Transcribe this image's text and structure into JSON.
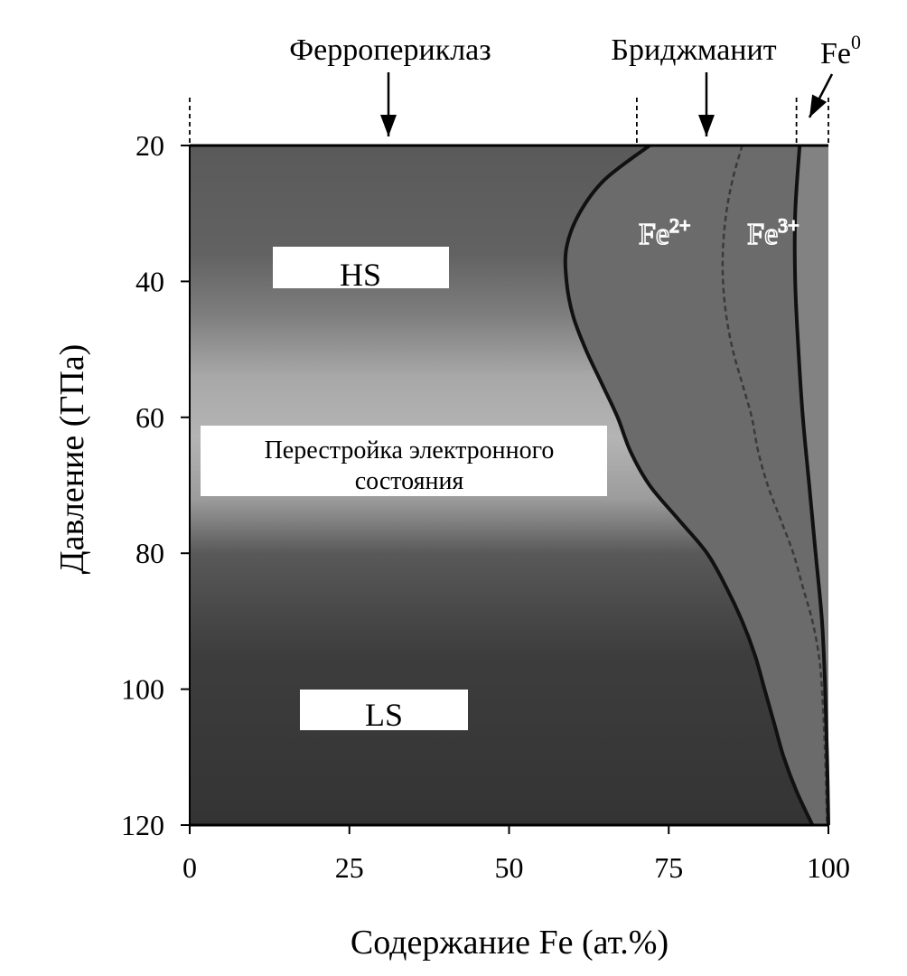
{
  "chart_data": {
    "type": "area",
    "xlabel": "Содержание Fe (ат.%)",
    "ylabel": "Давление (ГПа)",
    "xlim": [
      0,
      100
    ],
    "ylim": [
      20,
      120
    ],
    "y_inverted": true,
    "x_ticks": [
      0,
      25,
      50,
      75,
      100
    ],
    "y_ticks": [
      20,
      40,
      60,
      80,
      100,
      120
    ],
    "phase_labels": [
      {
        "text": "Ферропериклаз",
        "x_range": [
          0,
          70
        ]
      },
      {
        "text": "Бриджманит",
        "x_range": [
          70,
          95
        ]
      },
      {
        "text": "Fe",
        "superscript": "0",
        "x_range": [
          95,
          100
        ]
      }
    ],
    "boundaries": [
      {
        "name": "ferropericlase-bridgmanite",
        "style": "solid",
        "points": [
          [
            20,
            72
          ],
          [
            25,
            65
          ],
          [
            30,
            61
          ],
          [
            35,
            59
          ],
          [
            40,
            59
          ],
          [
            45,
            60
          ],
          [
            50,
            62
          ],
          [
            55,
            64.5
          ],
          [
            60,
            67
          ],
          [
            65,
            69
          ],
          [
            70,
            72
          ],
          [
            75,
            76.5
          ],
          [
            80,
            81
          ],
          [
            85,
            84
          ],
          [
            90,
            86.5
          ],
          [
            95,
            88.5
          ],
          [
            100,
            90
          ],
          [
            105,
            91.5
          ],
          [
            110,
            93
          ],
          [
            115,
            95
          ],
          [
            120,
            97.5
          ]
        ]
      },
      {
        "name": "Fe2+-Fe3+",
        "style": "dashed",
        "points": [
          [
            20,
            86.5
          ],
          [
            25,
            85
          ],
          [
            30,
            84
          ],
          [
            35,
            83.5
          ],
          [
            40,
            83.5
          ],
          [
            45,
            84
          ],
          [
            50,
            85
          ],
          [
            55,
            86.5
          ],
          [
            60,
            88
          ],
          [
            65,
            89
          ],
          [
            70,
            90.5
          ],
          [
            75,
            92.5
          ],
          [
            80,
            94.5
          ],
          [
            85,
            96
          ],
          [
            90,
            97.5
          ],
          [
            95,
            98.5
          ],
          [
            100,
            99
          ],
          [
            110,
            99.5
          ],
          [
            120,
            99.8
          ]
        ]
      },
      {
        "name": "bridgmanite-Fe0",
        "style": "solid",
        "points": [
          [
            20,
            95.5
          ],
          [
            30,
            94.8
          ],
          [
            40,
            94.8
          ],
          [
            50,
            95.3
          ],
          [
            60,
            96
          ],
          [
            70,
            97
          ],
          [
            80,
            98
          ],
          [
            90,
            99
          ],
          [
            100,
            99.5
          ],
          [
            110,
            99.8
          ],
          [
            120,
            100
          ]
        ]
      }
    ],
    "dashed_phase_dividers_x": [
      0,
      70,
      95,
      100
    ],
    "region_labels": [
      {
        "text": "HS",
        "pressure": 37
      },
      {
        "text_lines": [
          "Перестройка электронного",
          "состояния"
        ],
        "pressure": 66
      },
      {
        "text": "LS",
        "pressure": 103
      }
    ],
    "ion_labels": [
      {
        "text": "Fe",
        "superscript": "2+",
        "x": 71,
        "pressure": 33
      },
      {
        "text": "Fe",
        "superscript": "3+",
        "x": 88,
        "pressure": 33
      }
    ]
  }
}
